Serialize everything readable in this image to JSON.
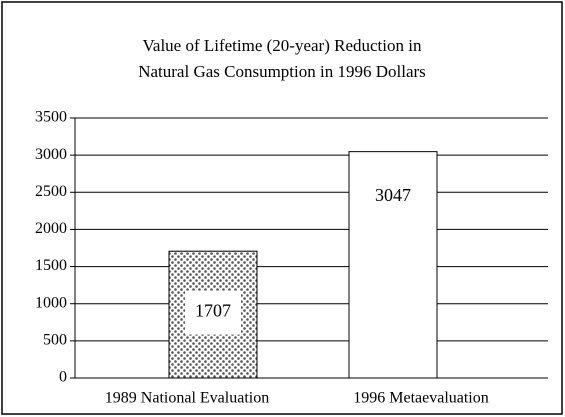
{
  "chart_data": {
    "type": "bar",
    "title": [
      "Value of Lifetime (20-year) Reduction in",
      "Natural Gas Consumption in 1996 Dollars"
    ],
    "categories": [
      "1989 National Evaluation",
      "1996 Metaevaluation"
    ],
    "values": [
      1707,
      3047
    ],
    "ylim": [
      0,
      3500
    ],
    "yticks": [
      0,
      500,
      1000,
      1500,
      2000,
      2500,
      3000,
      3500
    ],
    "grid": true
  }
}
